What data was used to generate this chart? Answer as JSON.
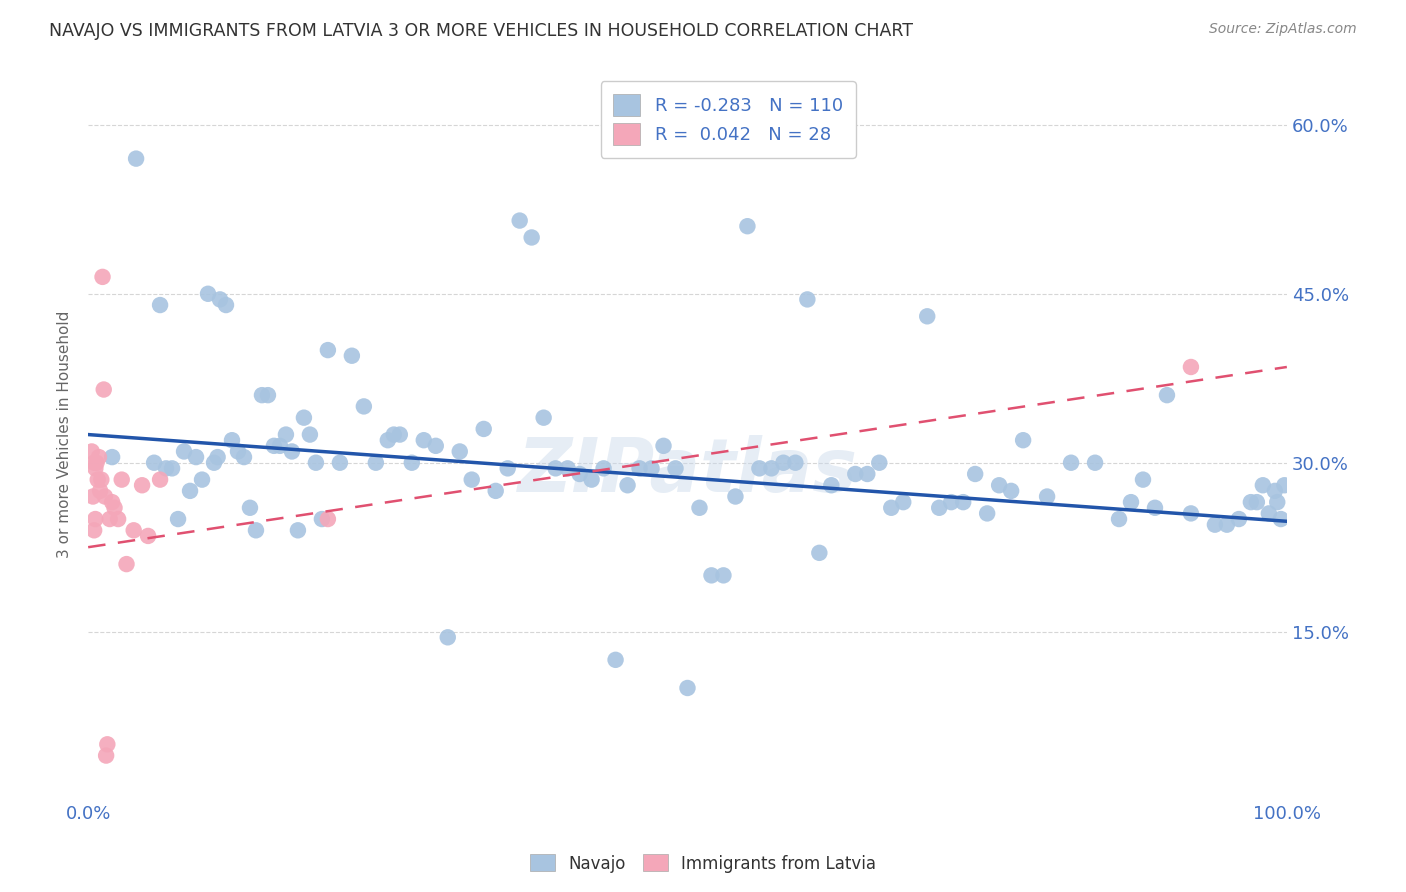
{
  "title": "NAVAJO VS IMMIGRANTS FROM LATVIA 3 OR MORE VEHICLES IN HOUSEHOLD CORRELATION CHART",
  "source": "Source: ZipAtlas.com",
  "ylabel": "3 or more Vehicles in Household",
  "ytick_labels": [
    "15.0%",
    "30.0%",
    "45.0%",
    "60.0%"
  ],
  "ytick_values": [
    0.15,
    0.3,
    0.45,
    0.6
  ],
  "xlim": [
    0.0,
    1.0
  ],
  "ylim": [
    0.0,
    0.65
  ],
  "navajo_R": -0.283,
  "navajo_N": 110,
  "latvia_R": 0.042,
  "latvia_N": 28,
  "navajo_color": "#A8C4E0",
  "navajo_line_color": "#2255AA",
  "latvia_color": "#F4A7B9",
  "latvia_line_color": "#E05070",
  "background_color": "#FFFFFF",
  "grid_color": "#CCCCCC",
  "title_color": "#333333",
  "navajo_line_x0": 0.0,
  "navajo_line_y0": 0.325,
  "navajo_line_x1": 1.0,
  "navajo_line_y1": 0.248,
  "latvia_line_x0": 0.0,
  "latvia_line_y0": 0.225,
  "latvia_line_x1": 1.0,
  "latvia_line_y1": 0.385,
  "watermark": "ZIPatlas",
  "navajo_x": [
    0.02,
    0.04,
    0.055,
    0.06,
    0.065,
    0.07,
    0.075,
    0.08,
    0.085,
    0.09,
    0.095,
    0.1,
    0.105,
    0.108,
    0.11,
    0.115,
    0.12,
    0.125,
    0.13,
    0.135,
    0.14,
    0.145,
    0.15,
    0.155,
    0.16,
    0.165,
    0.17,
    0.175,
    0.18,
    0.185,
    0.19,
    0.195,
    0.2,
    0.21,
    0.22,
    0.23,
    0.24,
    0.25,
    0.255,
    0.26,
    0.27,
    0.28,
    0.29,
    0.3,
    0.31,
    0.32,
    0.33,
    0.34,
    0.35,
    0.36,
    0.37,
    0.38,
    0.39,
    0.4,
    0.41,
    0.42,
    0.43,
    0.44,
    0.45,
    0.46,
    0.47,
    0.48,
    0.49,
    0.5,
    0.51,
    0.52,
    0.53,
    0.54,
    0.55,
    0.56,
    0.57,
    0.58,
    0.59,
    0.6,
    0.61,
    0.62,
    0.64,
    0.65,
    0.66,
    0.67,
    0.68,
    0.7,
    0.71,
    0.72,
    0.73,
    0.74,
    0.75,
    0.76,
    0.77,
    0.78,
    0.8,
    0.82,
    0.84,
    0.86,
    0.87,
    0.88,
    0.89,
    0.9,
    0.92,
    0.94,
    0.95,
    0.96,
    0.97,
    0.975,
    0.98,
    0.985,
    0.99,
    0.992,
    0.995,
    0.998
  ],
  "navajo_y": [
    0.305,
    0.57,
    0.3,
    0.44,
    0.295,
    0.295,
    0.25,
    0.31,
    0.275,
    0.305,
    0.285,
    0.45,
    0.3,
    0.305,
    0.445,
    0.44,
    0.32,
    0.31,
    0.305,
    0.26,
    0.24,
    0.36,
    0.36,
    0.315,
    0.315,
    0.325,
    0.31,
    0.24,
    0.34,
    0.325,
    0.3,
    0.25,
    0.4,
    0.3,
    0.395,
    0.35,
    0.3,
    0.32,
    0.325,
    0.325,
    0.3,
    0.32,
    0.315,
    0.145,
    0.31,
    0.285,
    0.33,
    0.275,
    0.295,
    0.515,
    0.5,
    0.34,
    0.295,
    0.295,
    0.29,
    0.285,
    0.295,
    0.125,
    0.28,
    0.295,
    0.295,
    0.315,
    0.295,
    0.1,
    0.26,
    0.2,
    0.2,
    0.27,
    0.51,
    0.295,
    0.295,
    0.3,
    0.3,
    0.445,
    0.22,
    0.28,
    0.29,
    0.29,
    0.3,
    0.26,
    0.265,
    0.43,
    0.26,
    0.265,
    0.265,
    0.29,
    0.255,
    0.28,
    0.275,
    0.32,
    0.27,
    0.3,
    0.3,
    0.25,
    0.265,
    0.285,
    0.26,
    0.36,
    0.255,
    0.245,
    0.245,
    0.25,
    0.265,
    0.265,
    0.28,
    0.255,
    0.275,
    0.265,
    0.25,
    0.28
  ],
  "latvia_x": [
    0.003,
    0.004,
    0.005,
    0.005,
    0.006,
    0.006,
    0.007,
    0.008,
    0.009,
    0.01,
    0.011,
    0.012,
    0.013,
    0.014,
    0.015,
    0.016,
    0.018,
    0.02,
    0.022,
    0.025,
    0.028,
    0.032,
    0.038,
    0.045,
    0.05,
    0.06,
    0.2,
    0.92
  ],
  "latvia_y": [
    0.31,
    0.27,
    0.3,
    0.24,
    0.295,
    0.25,
    0.3,
    0.285,
    0.305,
    0.275,
    0.285,
    0.465,
    0.365,
    0.27,
    0.04,
    0.05,
    0.25,
    0.265,
    0.26,
    0.25,
    0.285,
    0.21,
    0.24,
    0.28,
    0.235,
    0.285,
    0.25,
    0.385
  ]
}
